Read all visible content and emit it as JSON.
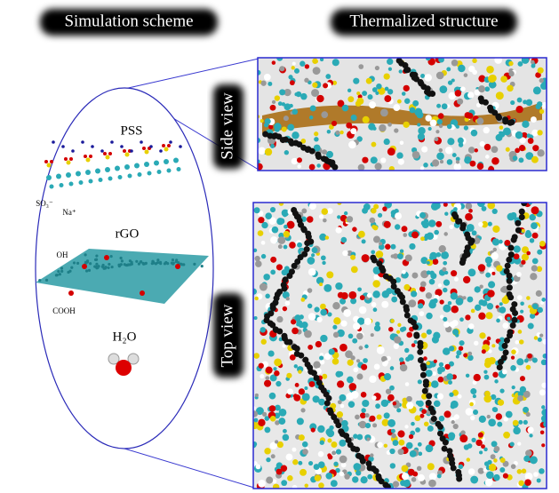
{
  "header": {
    "left": "Simulation scheme",
    "right": "Thermalized structure"
  },
  "views": {
    "side": "Side view",
    "top": "Top view"
  },
  "scheme": {
    "pss": "PSS",
    "rgo": "rGO",
    "water": "H₂O",
    "oh": "OH",
    "cooh": "COOH",
    "so3": "SO₃⁻",
    "na": "Na⁺"
  }
}
